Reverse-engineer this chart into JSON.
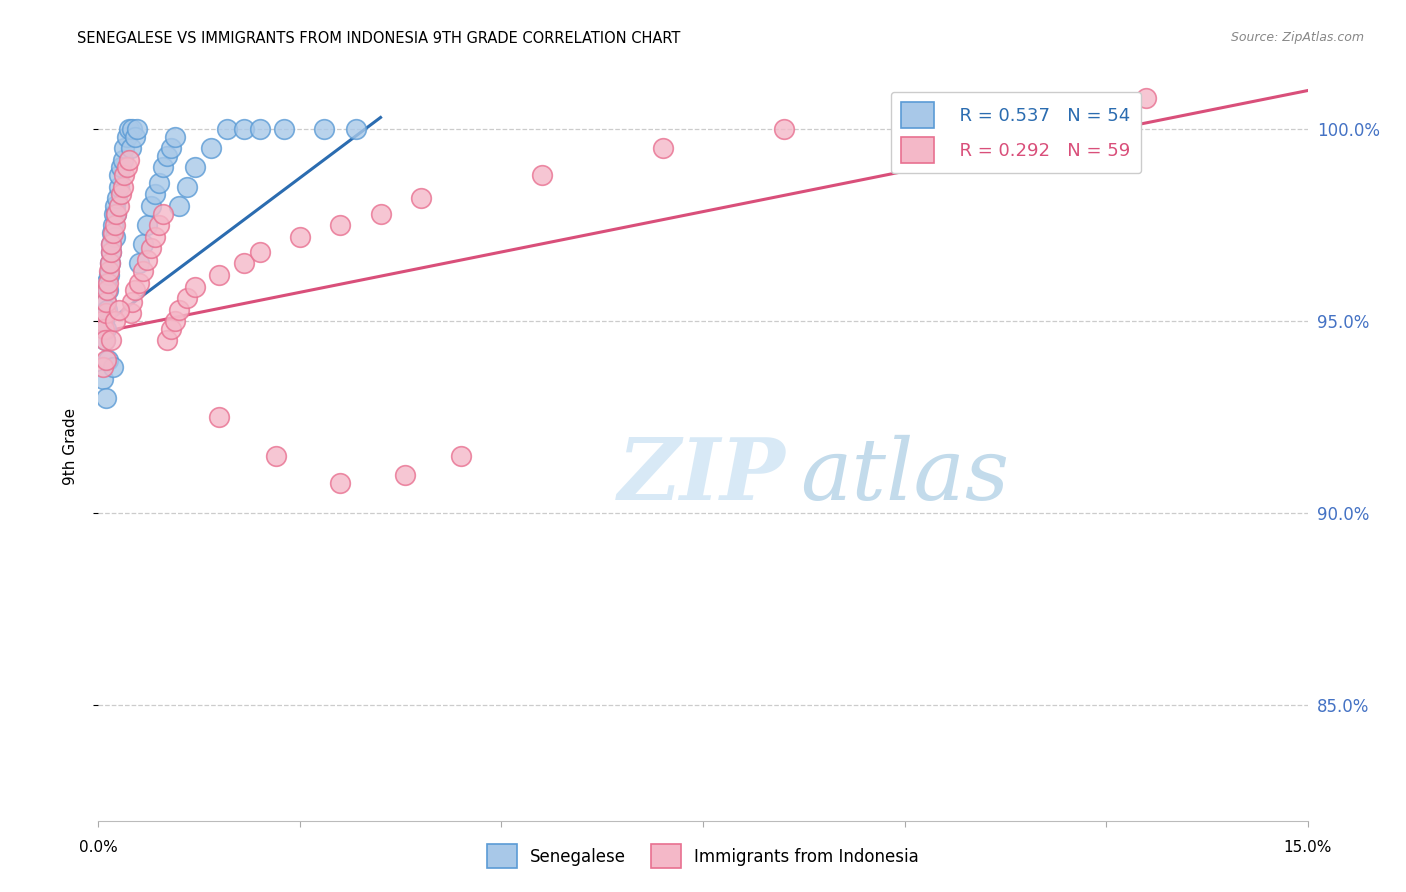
{
  "title": "SENEGALESE VS IMMIGRANTS FROM INDONESIA 9TH GRADE CORRELATION CHART",
  "source": "Source: ZipAtlas.com",
  "ylabel": "9th Grade",
  "xlim": [
    0.0,
    15.0
  ],
  "ylim": [
    82.0,
    101.5
  ],
  "ytick_values": [
    85.0,
    90.0,
    95.0,
    100.0
  ],
  "xtick_values": [
    0.0,
    2.5,
    5.0,
    7.5,
    10.0,
    12.5,
    15.0
  ],
  "blue_fill_color": "#a8c8e8",
  "blue_edge_color": "#5b9bd5",
  "pink_fill_color": "#f4b8c8",
  "pink_edge_color": "#e87090",
  "blue_line_color": "#2b6cb0",
  "pink_line_color": "#d94f7a",
  "legend_R_blue": "R = 0.537",
  "legend_N_blue": "N = 54",
  "legend_R_pink": "R = 0.292",
  "legend_N_pink": "N = 59",
  "watermark_zip": "ZIP",
  "watermark_atlas": "atlas",
  "axis_label_color": "#4472c4",
  "grid_color": "#cccccc",
  "background_color": "#ffffff",
  "blue_scatter_x": [
    0.05,
    0.07,
    0.08,
    0.09,
    0.1,
    0.1,
    0.11,
    0.12,
    0.13,
    0.14,
    0.15,
    0.16,
    0.17,
    0.18,
    0.19,
    0.2,
    0.21,
    0.22,
    0.23,
    0.25,
    0.26,
    0.28,
    0.3,
    0.32,
    0.35,
    0.38,
    0.4,
    0.42,
    0.45,
    0.48,
    0.5,
    0.55,
    0.6,
    0.65,
    0.7,
    0.75,
    0.8,
    0.85,
    0.9,
    0.95,
    1.0,
    1.1,
    1.2,
    1.4,
    1.6,
    1.8,
    2.0,
    2.3,
    2.8,
    3.2,
    0.06,
    0.09,
    0.12,
    0.18
  ],
  "blue_scatter_y": [
    95.2,
    95.0,
    94.5,
    94.8,
    95.5,
    96.0,
    95.3,
    95.8,
    96.2,
    96.5,
    96.8,
    97.0,
    97.3,
    97.5,
    97.8,
    98.0,
    97.2,
    97.8,
    98.2,
    98.5,
    98.8,
    99.0,
    99.2,
    99.5,
    99.8,
    100.0,
    99.5,
    100.0,
    99.8,
    100.0,
    96.5,
    97.0,
    97.5,
    98.0,
    98.3,
    98.6,
    99.0,
    99.3,
    99.5,
    99.8,
    98.0,
    98.5,
    99.0,
    99.5,
    100.0,
    100.0,
    100.0,
    100.0,
    100.0,
    100.0,
    93.5,
    93.0,
    94.0,
    93.8
  ],
  "pink_scatter_x": [
    0.05,
    0.07,
    0.08,
    0.09,
    0.1,
    0.11,
    0.12,
    0.13,
    0.14,
    0.15,
    0.16,
    0.18,
    0.2,
    0.22,
    0.25,
    0.28,
    0.3,
    0.32,
    0.35,
    0.38,
    0.4,
    0.42,
    0.45,
    0.5,
    0.55,
    0.6,
    0.65,
    0.7,
    0.75,
    0.8,
    0.85,
    0.9,
    0.95,
    1.0,
    1.1,
    1.2,
    1.5,
    1.8,
    2.0,
    2.5,
    3.0,
    3.5,
    4.0,
    5.5,
    7.0,
    8.5,
    10.0,
    11.5,
    13.0,
    0.06,
    0.09,
    0.15,
    0.2,
    0.25,
    1.5,
    2.2,
    3.0,
    3.8,
    4.5
  ],
  "pink_scatter_y": [
    95.0,
    94.8,
    94.5,
    95.2,
    95.5,
    95.8,
    96.0,
    96.3,
    96.5,
    96.8,
    97.0,
    97.3,
    97.5,
    97.8,
    98.0,
    98.3,
    98.5,
    98.8,
    99.0,
    99.2,
    95.2,
    95.5,
    95.8,
    96.0,
    96.3,
    96.6,
    96.9,
    97.2,
    97.5,
    97.8,
    94.5,
    94.8,
    95.0,
    95.3,
    95.6,
    95.9,
    96.2,
    96.5,
    96.8,
    97.2,
    97.5,
    97.8,
    98.2,
    98.8,
    99.5,
    100.0,
    100.5,
    100.5,
    100.8,
    93.8,
    94.0,
    94.5,
    95.0,
    95.3,
    92.5,
    91.5,
    90.8,
    91.0,
    91.5
  ],
  "blue_trend_x": [
    0.0,
    3.5
  ],
  "blue_trend_y": [
    94.8,
    100.3
  ],
  "pink_trend_x": [
    0.0,
    15.0
  ],
  "pink_trend_y": [
    94.7,
    101.0
  ]
}
